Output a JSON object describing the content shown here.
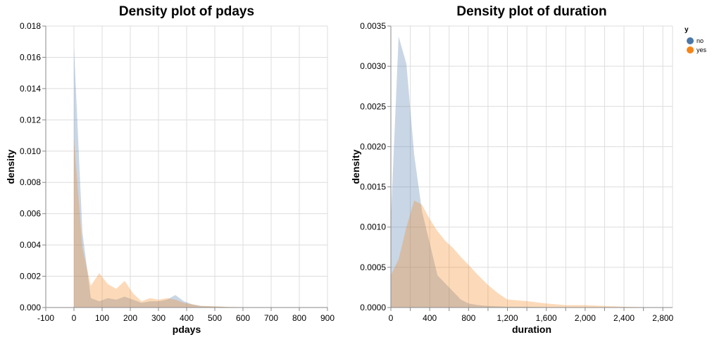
{
  "chart_data": [
    {
      "type": "area",
      "title": "Density plot of pdays",
      "xlabel": "pdays",
      "ylabel": "density",
      "xlim": [
        -100,
        900
      ],
      "ylim": [
        0,
        0.018
      ],
      "xticks": [
        -100,
        0,
        100,
        200,
        300,
        400,
        500,
        600,
        700,
        800,
        900
      ],
      "xtick_labels": [
        "-100",
        "0",
        "100",
        "200",
        "300",
        "400",
        "500",
        "600",
        "700",
        "800",
        "900"
      ],
      "yticks": [
        0,
        0.002,
        0.004,
        0.006,
        0.008,
        0.01,
        0.012,
        0.014,
        0.016,
        0.018
      ],
      "ytick_labels": [
        "0.000",
        "0.002",
        "0.004",
        "0.006",
        "0.008",
        "0.010",
        "0.012",
        "0.014",
        "0.016",
        "0.018"
      ],
      "grid": true,
      "series": [
        {
          "name": "no",
          "color": "#4c78a8",
          "opacity": 0.3,
          "x": [
            0,
            30,
            60,
            90,
            120,
            150,
            180,
            210,
            240,
            270,
            300,
            330,
            360,
            390,
            420,
            450,
            500,
            550,
            600,
            700,
            800,
            871
          ],
          "y": [
            0.0167,
            0.0048,
            0.0006,
            0.0004,
            0.0006,
            0.0005,
            0.0007,
            0.0005,
            0.0003,
            0.0004,
            0.0004,
            0.0005,
            0.0008,
            0.0004,
            0.0002,
            0.0001,
            6e-05,
            3e-05,
            2e-05,
            1e-05,
            1e-05,
            0
          ]
        },
        {
          "name": "yes",
          "color": "#f58518",
          "opacity": 0.3,
          "x": [
            0,
            30,
            60,
            90,
            120,
            150,
            180,
            210,
            240,
            270,
            300,
            330,
            360,
            390,
            420,
            450,
            500,
            550,
            600,
            700,
            800,
            871
          ],
          "y": [
            0.0108,
            0.0038,
            0.0014,
            0.0022,
            0.0015,
            0.0012,
            0.0017,
            0.0009,
            0.0004,
            0.0006,
            0.0005,
            0.0006,
            0.0005,
            0.0003,
            0.0002,
            0.0001,
            8e-05,
            4e-05,
            2e-05,
            1e-05,
            1e-05,
            0
          ]
        }
      ]
    },
    {
      "type": "area",
      "title": "Density plot of duration",
      "xlabel": "duration",
      "ylabel": "density",
      "xlim": [
        0,
        2900
      ],
      "ylim": [
        0,
        0.0035
      ],
      "xticks": [
        0,
        400,
        800,
        1200,
        1600,
        2000,
        2400,
        2800
      ],
      "xtick_labels": [
        "0",
        "400",
        "800",
        "1,200",
        "1,600",
        "2,000",
        "2,400",
        "2,800"
      ],
      "xticks_minor": [
        200,
        600,
        1000,
        1400,
        1800,
        2200,
        2600
      ],
      "yticks": [
        0,
        0.0005,
        0.001,
        0.0015,
        0.002,
        0.0025,
        0.003,
        0.0035
      ],
      "ytick_labels": [
        "0.0000",
        "0.0005",
        "0.0010",
        "0.0015",
        "0.0020",
        "0.0025",
        "0.0030",
        "0.0035"
      ],
      "grid": true,
      "series": [
        {
          "name": "no",
          "color": "#4c78a8",
          "opacity": 0.3,
          "x": [
            0,
            80,
            160,
            240,
            320,
            400,
            480,
            560,
            640,
            720,
            800,
            900,
            1000,
            1200,
            1400,
            1600,
            2000,
            2400,
            2800
          ],
          "y": [
            0.0011,
            0.00337,
            0.00303,
            0.0019,
            0.0012,
            0.0008,
            0.0004,
            0.0003,
            0.0002,
            0.0001,
            5e-05,
            3e-05,
            2e-05,
            1e-05,
            1e-05,
            5e-06,
            3e-06,
            1e-06,
            0
          ]
        },
        {
          "name": "yes",
          "color": "#f58518",
          "opacity": 0.3,
          "x": [
            0,
            80,
            160,
            240,
            320,
            400,
            480,
            560,
            640,
            720,
            800,
            900,
            1000,
            1100,
            1200,
            1300,
            1400,
            1600,
            1800,
            2000,
            2200,
            2400,
            2800
          ],
          "y": [
            0.0004,
            0.0006,
            0.001,
            0.00133,
            0.00128,
            0.0011,
            0.00095,
            0.00083,
            0.00074,
            0.00063,
            0.00053,
            0.0004,
            0.00028,
            0.00018,
            0.0001,
            9e-05,
            8e-05,
            5e-05,
            3e-05,
            3e-05,
            2e-05,
            1e-05,
            0
          ]
        }
      ]
    }
  ],
  "legend": {
    "title": "y",
    "items": [
      {
        "label": "no",
        "color": "#4c78a8"
      },
      {
        "label": "yes",
        "color": "#f58518"
      }
    ]
  }
}
